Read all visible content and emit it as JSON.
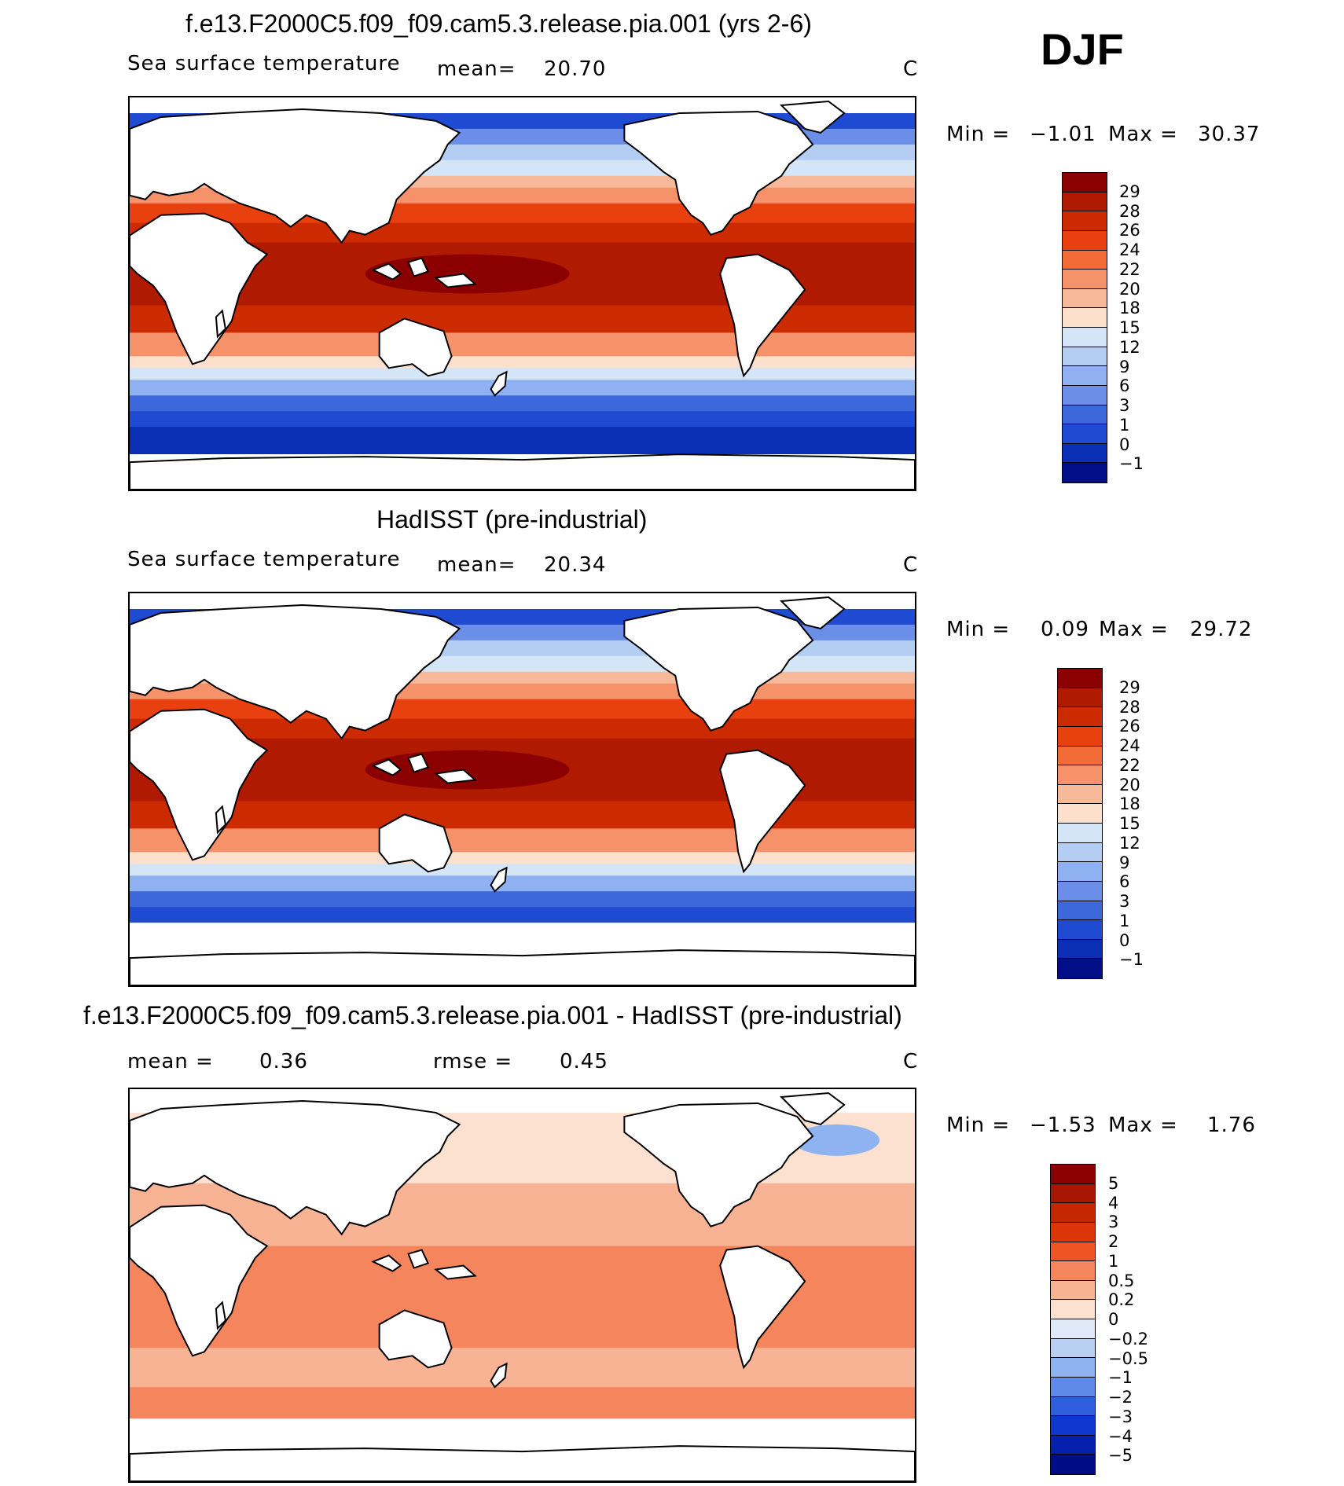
{
  "season": "DJF",
  "panels": [
    {
      "title": "f.e13.F2000C5.f09_f09.cam5.3.release.pia.001 (yrs 2-6)",
      "left_label": "Sea surface temperature",
      "mean_label": "mean=",
      "mean_value": "20.70",
      "units": "C",
      "min_label": "Min =",
      "min_value": "−1.01",
      "max_label": "Max =",
      "max_value": "30.37",
      "scale": "abs"
    },
    {
      "title": "HadISST (pre-industrial)",
      "left_label": "Sea surface temperature",
      "mean_label": "mean=",
      "mean_value": "20.34",
      "units": "C",
      "min_label": "Min =",
      "min_value": "0.09",
      "max_label": "Max =",
      "max_value": "29.72",
      "scale": "abs"
    },
    {
      "title": "f.e13.F2000C5.f09_f09.cam5.3.release.pia.001 - HadISST (pre-industrial)",
      "left_label": "mean =",
      "mean_label": "",
      "mean_value": "0.36",
      "rmse_label": "rmse =",
      "rmse_value": "0.45",
      "units": "C",
      "min_label": "Min =",
      "min_value": "−1.53",
      "max_label": "Max =",
      "max_value": "1.76",
      "scale": "diff"
    }
  ],
  "colorbars": {
    "abs": {
      "ticks": [
        "29",
        "28",
        "26",
        "24",
        "22",
        "20",
        "18",
        "15",
        "12",
        "9",
        "6",
        "3",
        "1",
        "0",
        "−1"
      ],
      "colors": [
        "#8b0000",
        "#b01a00",
        "#cc2a00",
        "#e8400f",
        "#f26a36",
        "#f5926a",
        "#f8b99a",
        "#fce0cc",
        "#d4e5f7",
        "#b3cdf3",
        "#8fb1f1",
        "#6b8ee8",
        "#3c68dc",
        "#1e4bd2",
        "#0a2eb4",
        "#000f87"
      ]
    },
    "diff": {
      "ticks": [
        "5",
        "4",
        "3",
        "2",
        "1",
        "0.5",
        "0.2",
        "0",
        "−0.2",
        "−0.5",
        "−1",
        "−2",
        "−3",
        "−4",
        "−5"
      ],
      "colors": [
        "#8b0000",
        "#a81500",
        "#c42600",
        "#dc3608",
        "#ee5424",
        "#f5855c",
        "#f8b394",
        "#fce1d0",
        "#dfe8f6",
        "#b8cff2",
        "#8fb3f0",
        "#5e89e6",
        "#2f5fdc",
        "#0e37cf",
        "#0520ad",
        "#000b86"
      ]
    }
  }
}
